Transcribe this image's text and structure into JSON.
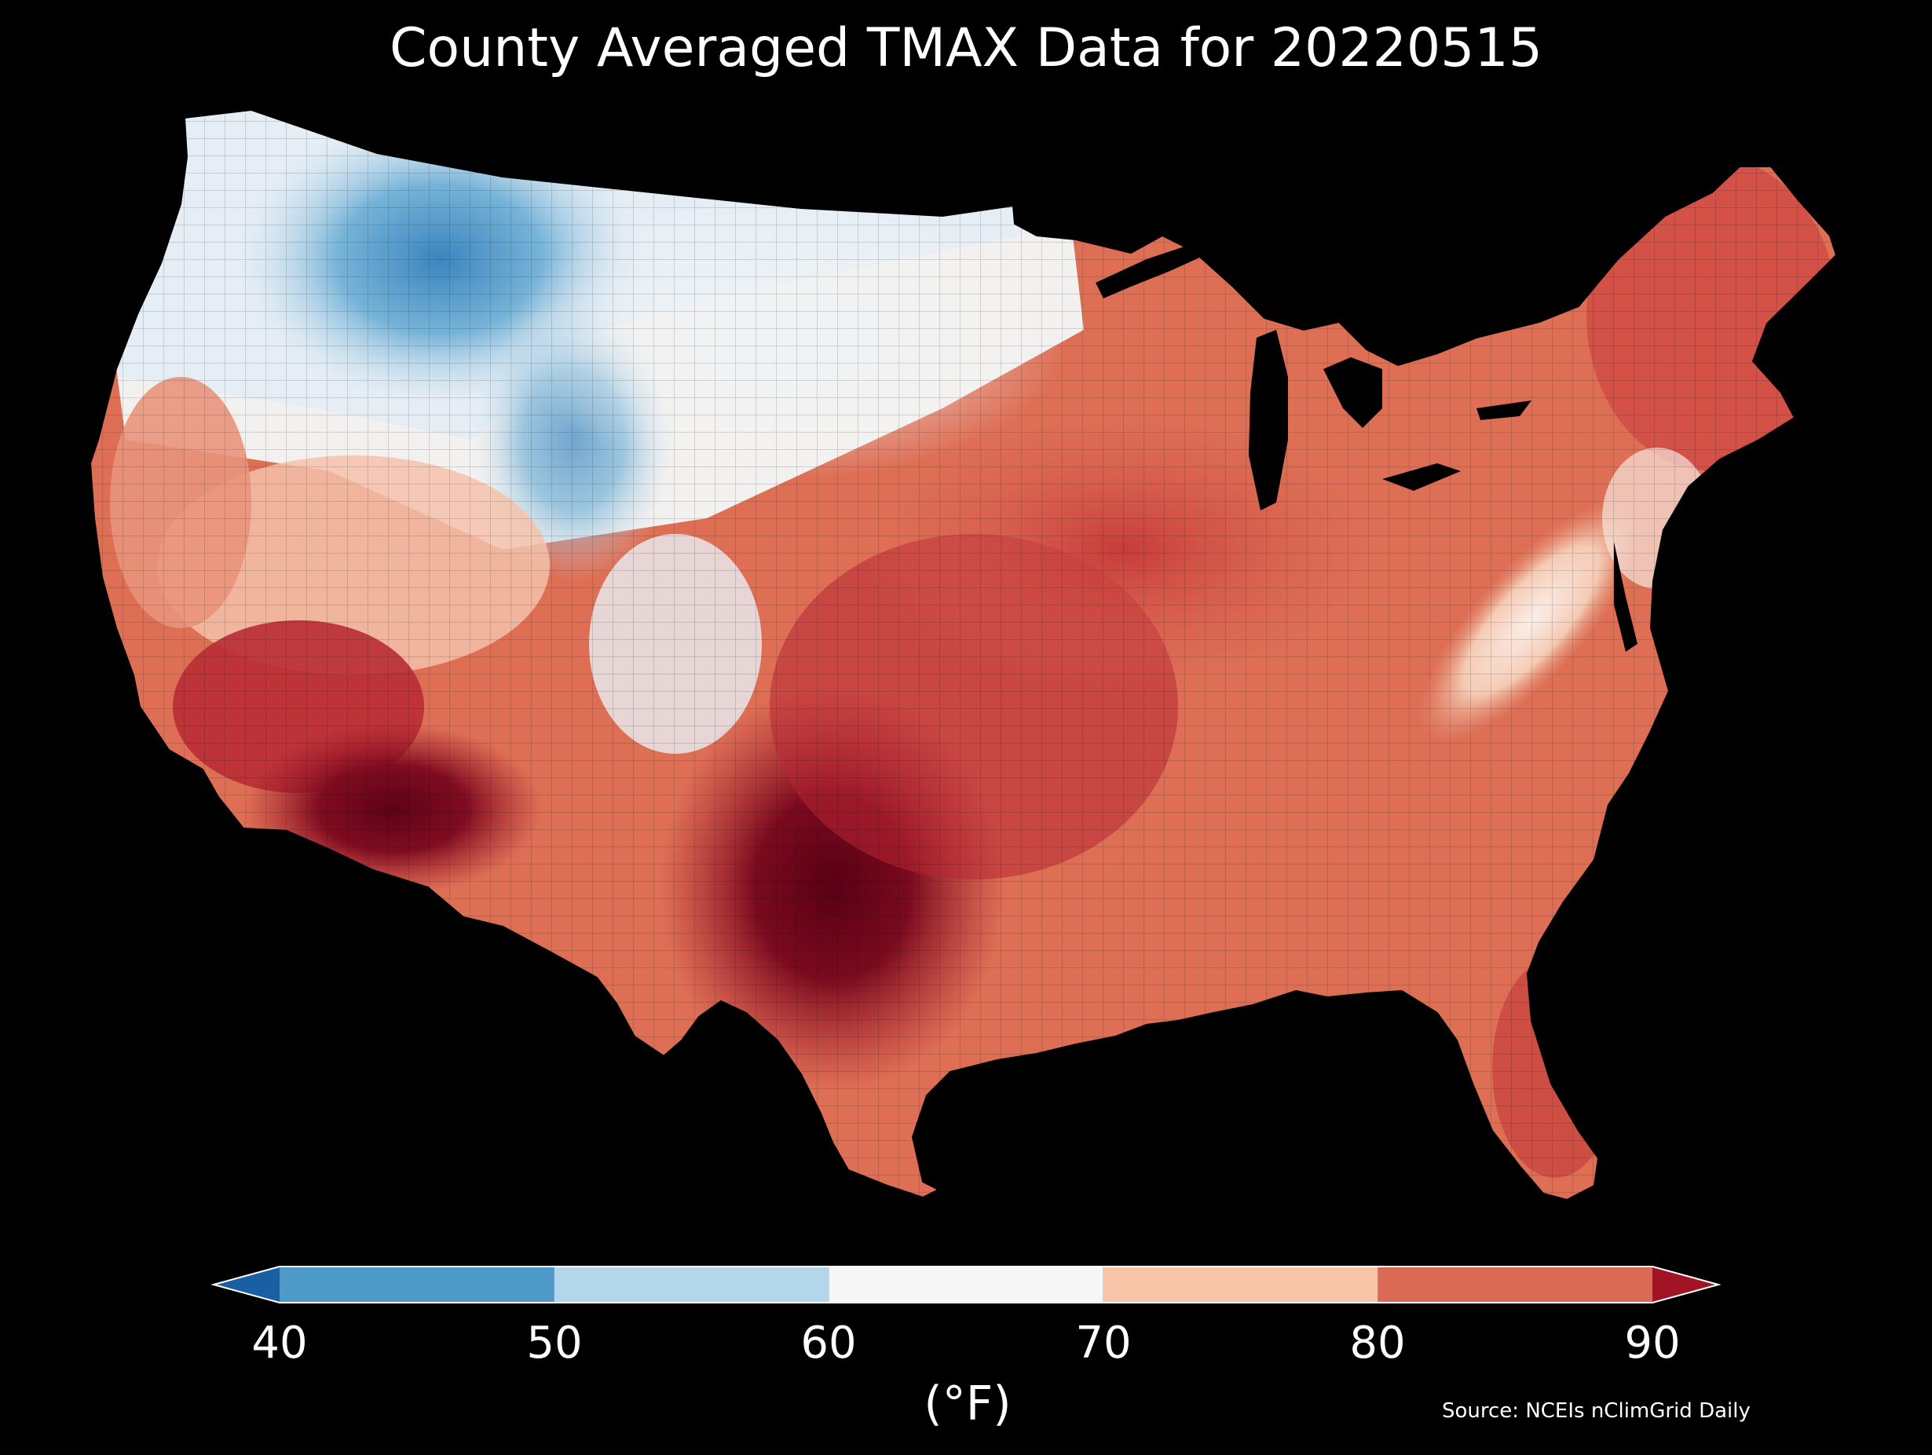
{
  "title": "County Averaged TMAX Data for 20220515",
  "colorbar": {
    "ticks": [
      "40",
      "50",
      "60",
      "70",
      "80",
      "90"
    ],
    "unit": "(°F)",
    "under_color": "#1a5fa3",
    "over_color": "#a31326",
    "bins": [
      {
        "from": 40,
        "to": 50,
        "color": "#4d99c8"
      },
      {
        "from": 50,
        "to": 60,
        "color": "#b4d6ea"
      },
      {
        "from": 60,
        "to": 70,
        "color": "#f6f6f6"
      },
      {
        "from": 70,
        "to": 80,
        "color": "#f8c4a8"
      },
      {
        "from": 80,
        "to": 90,
        "color": "#db6a54"
      }
    ]
  },
  "source": "Source: NCEIs nClimGrid Daily",
  "map": {
    "region": "Contiguous United States",
    "variable": "TMAX",
    "palette": {
      "cold": "#3d8bc1",
      "cool": "#cfe3f0",
      "neutral": "#f7f3f0",
      "warm": "#f1a58a",
      "hot": "#cf4a42",
      "very_hot": "#a11a2e",
      "extreme": "#670818"
    }
  }
}
